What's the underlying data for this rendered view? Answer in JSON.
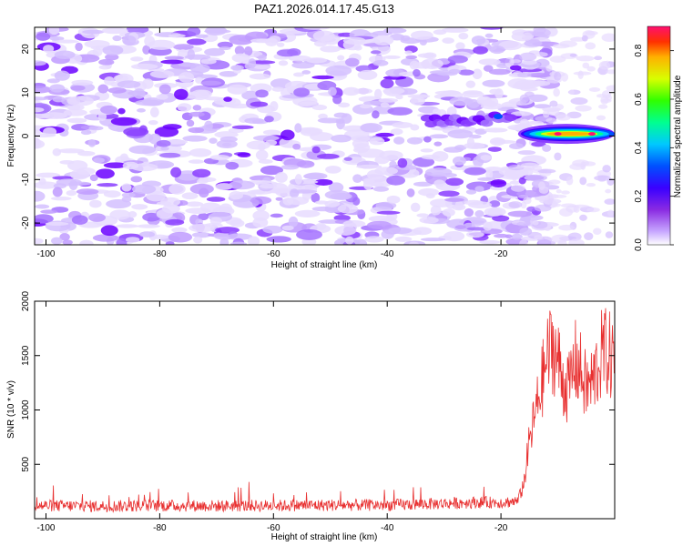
{
  "figure_title": "PAZ1.2026.014.17.45.G13",
  "chart_data": [
    {
      "type": "heatmap",
      "xlabel": "Height of straight line (km)",
      "ylabel": "Frequency (Hz)",
      "xlim": [
        -102,
        0
      ],
      "ylim": [
        -25,
        25
      ],
      "xticks": [
        -100,
        -80,
        -60,
        -40,
        -20
      ],
      "yticks": [
        -20,
        -10,
        0,
        10,
        20
      ],
      "colorbar": {
        "label": "Normalized spectral amplitude",
        "range": [
          0.0,
          0.9
        ],
        "ticks": [
          0.0,
          0.2,
          0.4,
          0.6,
          0.8
        ]
      },
      "features": [
        {
          "name": "noise",
          "x_range": [
            -102,
            -15
          ],
          "y_range": [
            -25,
            25
          ],
          "amplitude": 0.1
        },
        {
          "name": "signal-ridge",
          "x_range": [
            -33,
            -18
          ],
          "y_center": 3.5,
          "amplitude": 0.2
        },
        {
          "name": "signal-peak",
          "x_range": [
            -17,
            0
          ],
          "y_center": 0.5,
          "amplitude": 0.88
        }
      ]
    },
    {
      "type": "line",
      "xlabel": "Height of straight line (km)",
      "ylabel": "SNR (10 * v/v)",
      "xlim": [
        -102,
        0
      ],
      "ylim": [
        0,
        2000
      ],
      "xticks": [
        -100,
        -80,
        -60,
        -40,
        -20
      ],
      "yticks": [
        500,
        1000,
        1500,
        2000
      ],
      "series": [
        {
          "name": "SNR",
          "color": "#e83030",
          "points": [
            [
              -102,
              120
            ],
            [
              -90,
              115
            ],
            [
              -80,
              120
            ],
            [
              -70,
              118
            ],
            [
              -60,
              120
            ],
            [
              -50,
              125
            ],
            [
              -40,
              125
            ],
            [
              -30,
              140
            ],
            [
              -25,
              150
            ],
            [
              -20,
              150
            ],
            [
              -17,
              160
            ],
            [
              -16,
              320
            ],
            [
              -15,
              700
            ],
            [
              -14,
              950
            ],
            [
              -13,
              1200
            ],
            [
              -12,
              1450
            ],
            [
              -11,
              1600
            ],
            [
              -10,
              1450
            ],
            [
              -9,
              1250
            ],
            [
              -8,
              1200
            ],
            [
              -7,
              1450
            ],
            [
              -6,
              1350
            ],
            [
              -5,
              1200
            ],
            [
              -4,
              1250
            ],
            [
              -3,
              1400
            ],
            [
              -2,
              1550
            ],
            [
              -1,
              1500
            ],
            [
              0,
              1450
            ]
          ]
        }
      ]
    }
  ]
}
